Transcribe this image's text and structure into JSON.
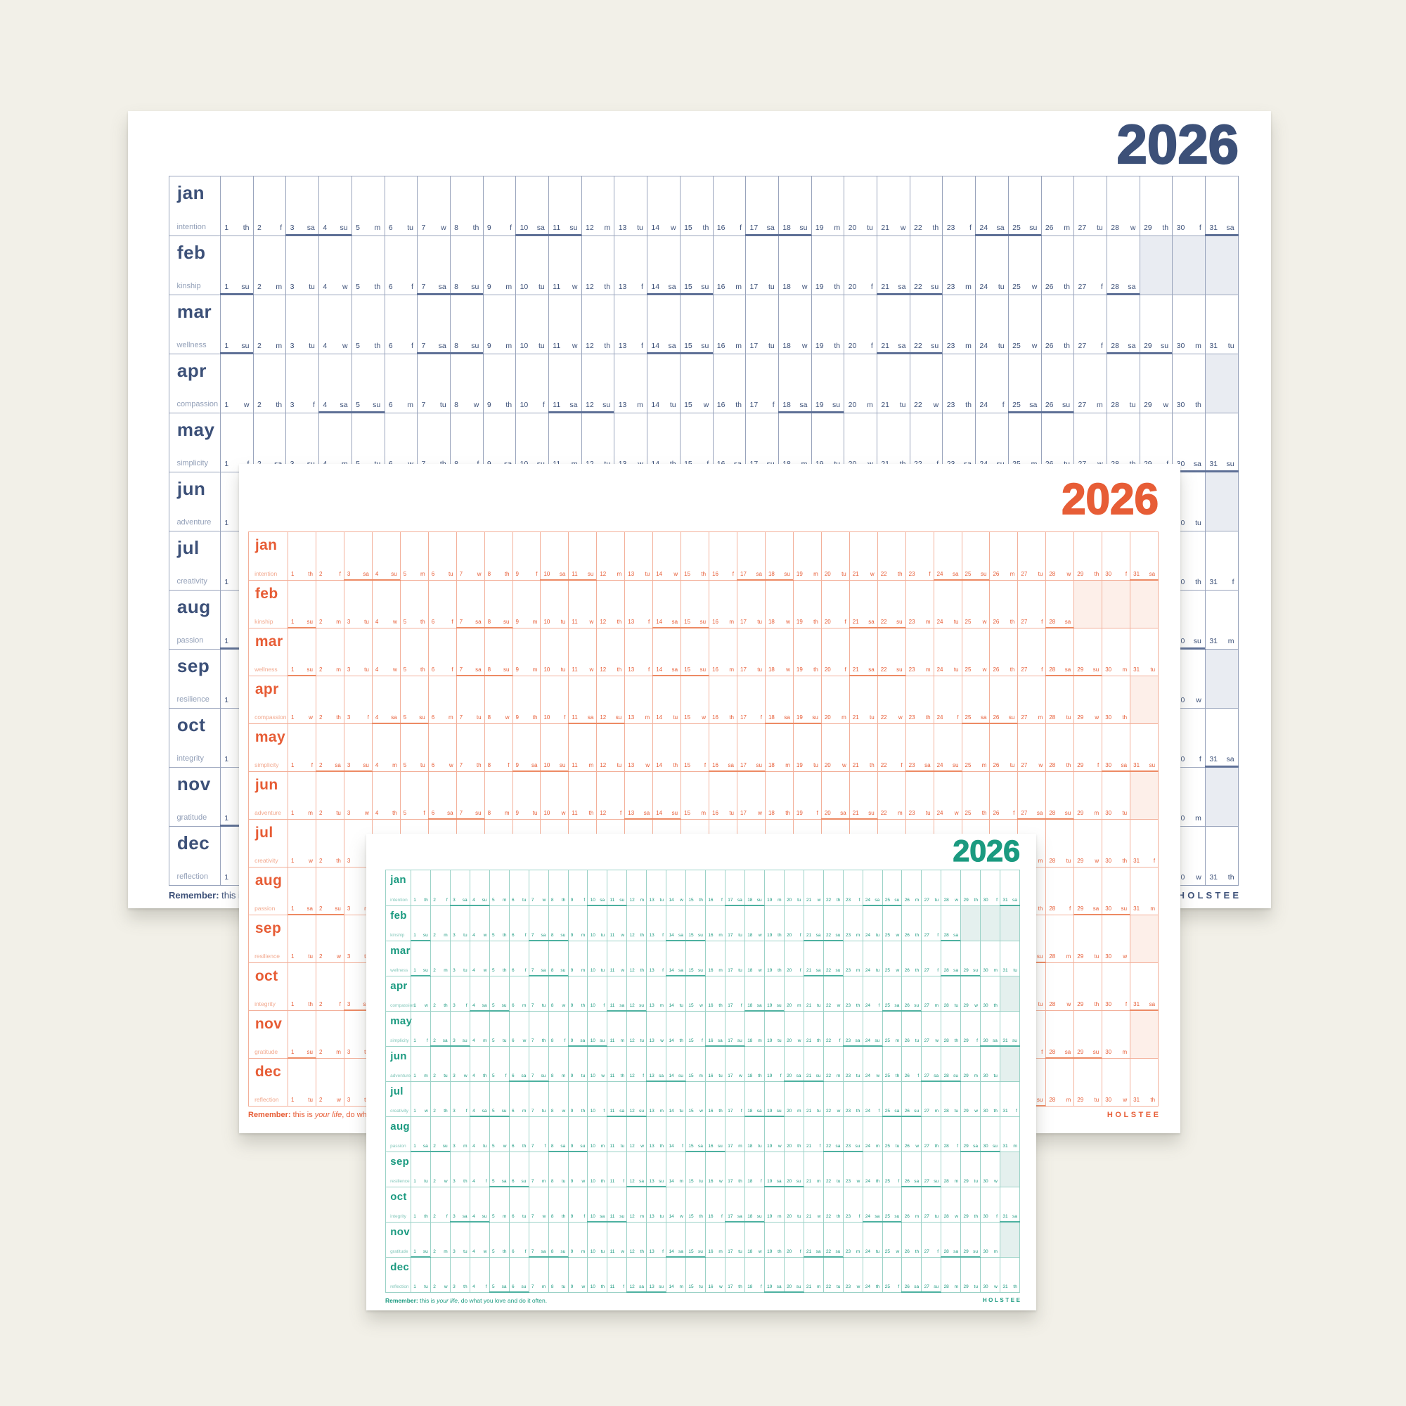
{
  "background": "#f2f0e8",
  "year": "2026",
  "brand": "HOLSTEE",
  "footer": {
    "bold": "Remember:",
    "pre": " this is ",
    "italic": "your life",
    "post": ", do what you love and do it often."
  },
  "weekday_abbreviations": [
    "m",
    "tu",
    "w",
    "th",
    "f",
    "sa",
    "su"
  ],
  "weekend_days": [
    "sa",
    "su"
  ],
  "day_columns": 31,
  "months": [
    {
      "name": "jan",
      "word": "intention",
      "days": 31,
      "first_day": "th"
    },
    {
      "name": "feb",
      "word": "kinship",
      "days": 28,
      "first_day": "su"
    },
    {
      "name": "mar",
      "word": "wellness",
      "days": 31,
      "first_day": "su"
    },
    {
      "name": "apr",
      "word": "compassion",
      "days": 30,
      "first_day": "w"
    },
    {
      "name": "may",
      "word": "simplicity",
      "days": 31,
      "first_day": "f"
    },
    {
      "name": "jun",
      "word": "adventure",
      "days": 30,
      "first_day": "m"
    },
    {
      "name": "jul",
      "word": "creativity",
      "days": 31,
      "first_day": "w"
    },
    {
      "name": "aug",
      "word": "passion",
      "days": 31,
      "first_day": "sa"
    },
    {
      "name": "sep",
      "word": "resilience",
      "days": 30,
      "first_day": "tu"
    },
    {
      "name": "oct",
      "word": "integrity",
      "days": 31,
      "first_day": "th"
    },
    {
      "name": "nov",
      "word": "gratitude",
      "days": 30,
      "first_day": "su"
    },
    {
      "name": "dec",
      "word": "reflection",
      "days": 31,
      "first_day": "tu"
    }
  ],
  "sheets": [
    {
      "id": "navy",
      "accent": "#3c5078",
      "grid_line": "#99a4bc",
      "weekend_line": "#5e7096",
      "muted_text": "#93a0b8",
      "inactive_fill": "#e9ecf2"
    },
    {
      "id": "orange",
      "accent": "#e75d36",
      "grid_line": "#f3b09a",
      "weekend_line": "#ed8a64",
      "muted_text": "#f2a98f",
      "inactive_fill": "#fdefe9"
    },
    {
      "id": "teal",
      "accent": "#1b9a80",
      "grid_line": "#9bd2c7",
      "weekend_line": "#4db1a0",
      "muted_text": "#82c7ba",
      "inactive_fill": "#e4f0ee"
    }
  ]
}
